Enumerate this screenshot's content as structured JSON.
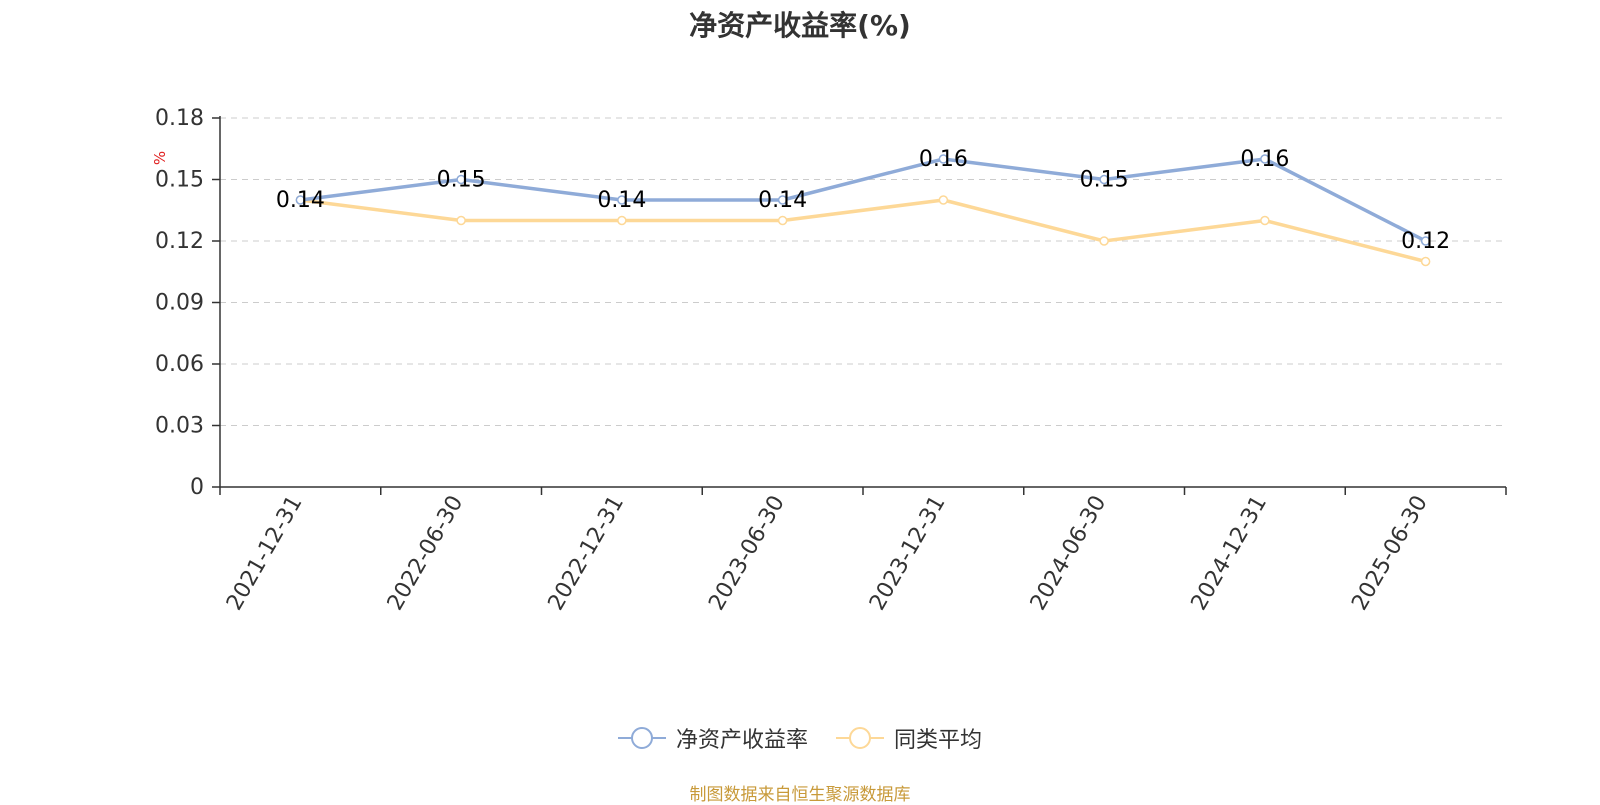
{
  "title": "净资产收益率(%)",
  "source": "制图数据来自恒生聚源数据库",
  "colors": {
    "series1": "#8fabd8",
    "series2": "#fdd897",
    "unit": "#e02020",
    "axis": "#333333",
    "grid": "#cccccc",
    "label": "#000000"
  },
  "chart_data": {
    "type": "line",
    "title": "净资产收益率(%)",
    "ylabel": "%",
    "ylim": [
      0,
      0.18
    ],
    "yticks": [
      "0",
      "0.03",
      "0.06",
      "0.09",
      "0.12",
      "0.15",
      "0.18"
    ],
    "grid": true,
    "legend_position": "bottom-center",
    "categories": [
      "2021-12-31",
      "2022-06-30",
      "2022-12-31",
      "2023-06-30",
      "2023-12-31",
      "2024-06-30",
      "2024-12-31",
      "2025-06-30"
    ],
    "series": [
      {
        "name": "净资产收益率",
        "values": [
          0.14,
          0.15,
          0.14,
          0.14,
          0.16,
          0.15,
          0.16,
          0.12
        ],
        "data_labels": [
          "0.14",
          "0.15",
          "0.14",
          "0.14",
          "0.16",
          "0.15",
          "0.16",
          "0.12"
        ]
      },
      {
        "name": "同类平均",
        "values": [
          0.14,
          0.13,
          0.13,
          0.13,
          0.14,
          0.12,
          0.13,
          0.11
        ]
      }
    ]
  }
}
